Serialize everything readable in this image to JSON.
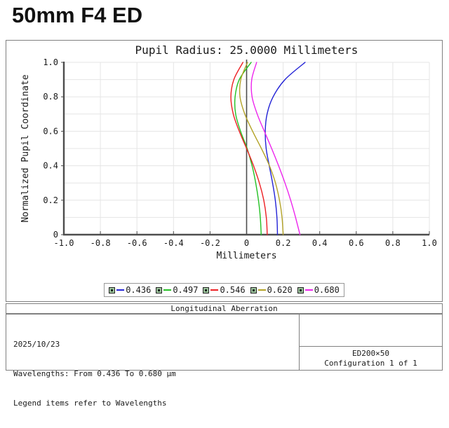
{
  "page_title": "50mm F4 ED",
  "chart_data": {
    "type": "line",
    "title": "Pupil Radius: 25.0000 Millimeters",
    "xlabel": "Millimeters",
    "ylabel": "Normalized Pupil Coordinate",
    "xlim": [
      -1.0,
      1.0
    ],
    "ylim": [
      0.0,
      1.0
    ],
    "grid": "on",
    "x_grid_step": 0.2,
    "y_grid_step": 0.1,
    "x_tick_values": [
      -1.0,
      -0.8,
      -0.6,
      -0.4,
      -0.2,
      0,
      0.2,
      0.4,
      0.6,
      0.8,
      1.0
    ],
    "x_tick_labels": [
      "-1.0",
      "-0.8",
      "-0.6",
      "-0.4",
      "-0.2",
      "0",
      "0.2",
      "0.4",
      "0.6",
      "0.8",
      "1.0"
    ],
    "y_tick_values": [
      0,
      0.2,
      0.4,
      0.6,
      0.8,
      1.0
    ],
    "y_tick_labels": [
      "0",
      "0.2",
      "0.4",
      "0.6",
      "0.8",
      "1.0"
    ],
    "zero_axis_line": true,
    "legend_position": "bottom-center",
    "pupil_y": [
      1.0,
      0.9,
      0.8,
      0.7,
      0.6,
      0.5,
      0.4,
      0.3,
      0.2,
      0.1,
      0.0
    ],
    "series": [
      {
        "name": "0.436",
        "color": "#2323d6",
        "x_mm": [
          0.32,
          0.21,
          0.145,
          0.112,
          0.102,
          0.107,
          0.124,
          0.142,
          0.157,
          0.166,
          0.169
        ]
      },
      {
        "name": "0.497",
        "color": "#23c123",
        "x_mm": [
          0.025,
          -0.04,
          -0.063,
          -0.06,
          -0.033,
          0.003,
          0.03,
          0.05,
          0.065,
          0.075,
          0.08
        ]
      },
      {
        "name": "0.546",
        "color": "#ed2024",
        "x_mm": [
          -0.02,
          -0.07,
          -0.086,
          -0.073,
          -0.04,
          0.0,
          0.038,
          0.07,
          0.094,
          0.108,
          0.113
        ]
      },
      {
        "name": "0.620",
        "color": "#b3a226",
        "x_mm": [
          0.005,
          -0.032,
          -0.036,
          -0.01,
          0.033,
          0.081,
          0.125,
          0.158,
          0.18,
          0.194,
          0.2
        ]
      },
      {
        "name": "0.680",
        "color": "#ed24ed",
        "x_mm": [
          0.055,
          0.028,
          0.03,
          0.058,
          0.097,
          0.137,
          0.175,
          0.21,
          0.241,
          0.268,
          0.292
        ]
      }
    ]
  },
  "footer": {
    "section_title": "Longitudinal Aberration",
    "date": "2025/10/23",
    "wavelengths_line": "Wavelengths: From 0.436 To 0.680 μm",
    "legend_note": "Legend items refer to Wavelengths",
    "config_name": "ED200×50",
    "config_line": "Configuration 1 of 1"
  }
}
